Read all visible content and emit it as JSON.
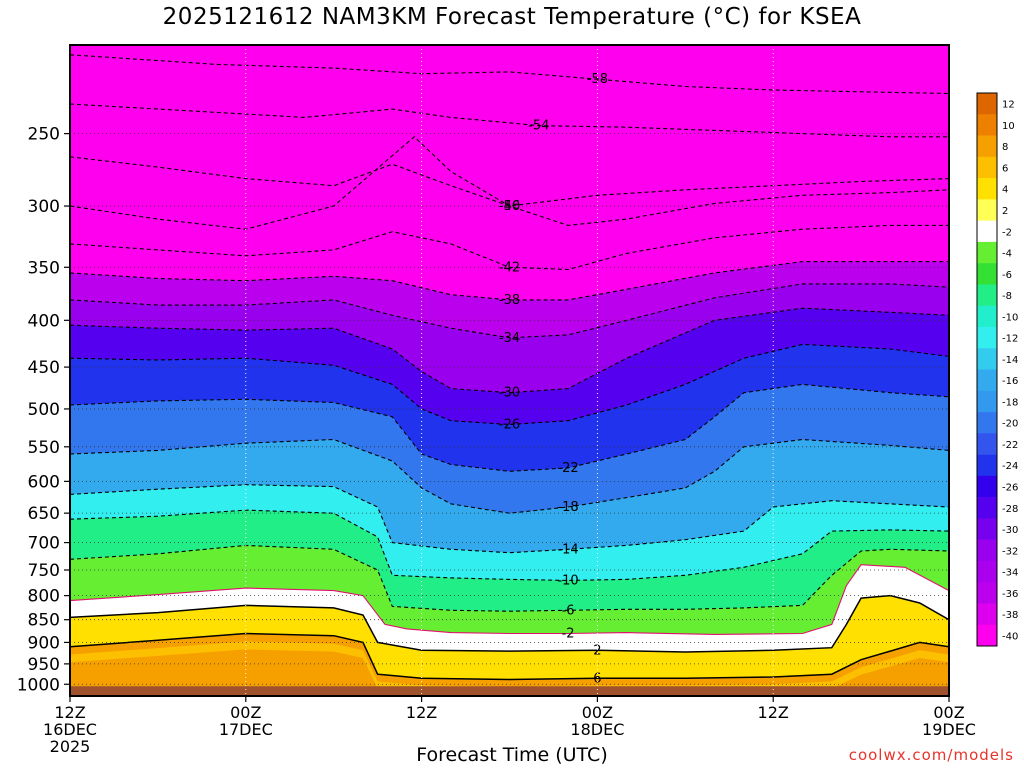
{
  "title": "2025121612 NAM3KM Forecast Temperature (°C) for KSEA",
  "xlabel": "Forecast Time (UTC)",
  "credit": "coolwx.com/models",
  "chart_data": {
    "type": "heatmap",
    "title": "2025121612 NAM3KM Forecast Temperature (°C) for KSEA",
    "xlabel": "Forecast Time (UTC)",
    "ylabel": "",
    "x_ticks": [
      {
        "hour": 0,
        "lines": [
          "12Z",
          "16DEC",
          "2025"
        ]
      },
      {
        "hour": 12,
        "lines": [
          "00Z",
          "17DEC"
        ]
      },
      {
        "hour": 24,
        "lines": [
          "12Z"
        ]
      },
      {
        "hour": 36,
        "lines": [
          "00Z",
          "18DEC"
        ]
      },
      {
        "hour": 48,
        "lines": [
          "12Z"
        ]
      },
      {
        "hour": 60,
        "lines": [
          "00Z",
          "19DEC"
        ]
      }
    ],
    "xlim": [
      0,
      60
    ],
    "y_ticks": [
      250,
      300,
      350,
      400,
      450,
      500,
      550,
      600,
      650,
      700,
      750,
      800,
      850,
      900,
      950,
      1000
    ],
    "ylim": [
      200,
      1030
    ],
    "y_scale": "log",
    "y_reversed": true,
    "grid": true,
    "colorbar": {
      "labels": [
        "12",
        "10",
        "8",
        "6",
        "4",
        "2",
        "-2",
        "-4",
        "-6",
        "-8",
        "-10",
        "-12",
        "-14",
        "-16",
        "-18",
        "-20",
        "-22",
        "-24",
        "-26",
        "-28",
        "-30",
        "-32",
        "-34",
        "-36",
        "-38",
        "-40"
      ],
      "colors": [
        "#dd6600",
        "#ee8000",
        "#f6a000",
        "#fdc000",
        "#ffe000",
        "#ffff55",
        "#ffffff",
        "#66ee33",
        "#33e033",
        "#22ee88",
        "#22eecc",
        "#33eeee",
        "#33ccee",
        "#33aaee",
        "#3399ee",
        "#3377ee",
        "#3355ee",
        "#2233ee",
        "#3300ee",
        "#5500ee",
        "#7700ee",
        "#9900ee",
        "#aa00ee",
        "#bb00ee",
        "#dd00ee",
        "#ff00ee"
      ]
    },
    "contours": [
      {
        "value": -58,
        "label": "-58",
        "points": [
          [
            0,
            205
          ],
          [
            10,
            210
          ],
          [
            18,
            212
          ],
          [
            24,
            215
          ],
          [
            30,
            214
          ],
          [
            36,
            218
          ],
          [
            42,
            222
          ],
          [
            48,
            224
          ],
          [
            54,
            225
          ],
          [
            60,
            226
          ]
        ]
      },
      {
        "value": -54,
        "label": "-54",
        "points": [
          [
            0,
            232
          ],
          [
            8,
            236
          ],
          [
            16,
            240
          ],
          [
            22,
            235
          ],
          [
            26,
            240
          ],
          [
            32,
            245
          ],
          [
            38,
            246
          ],
          [
            44,
            248
          ],
          [
            50,
            250
          ],
          [
            56,
            252
          ],
          [
            60,
            252
          ]
        ]
      },
      {
        "value": -50,
        "label": "-50",
        "points": [
          [
            0,
            265
          ],
          [
            6,
            272
          ],
          [
            12,
            280
          ],
          [
            18,
            285
          ],
          [
            22,
            270
          ],
          [
            26,
            285
          ],
          [
            30,
            300
          ],
          [
            36,
            292
          ],
          [
            42,
            288
          ],
          [
            48,
            285
          ],
          [
            54,
            282
          ],
          [
            60,
            280
          ]
        ]
      },
      {
        "value": -46,
        "label": "-46",
        "points": [
          [
            0,
            300
          ],
          [
            6,
            310
          ],
          [
            12,
            318
          ],
          [
            18,
            300
          ],
          [
            23.5,
            252
          ],
          [
            26,
            275
          ],
          [
            30,
            300
          ],
          [
            34,
            315
          ],
          [
            38,
            310
          ],
          [
            44,
            298
          ],
          [
            50,
            292
          ],
          [
            56,
            290
          ],
          [
            60,
            288
          ]
        ]
      },
      {
        "value": -42,
        "label": "-42",
        "points": [
          [
            0,
            330
          ],
          [
            6,
            335
          ],
          [
            12,
            340
          ],
          [
            18,
            335
          ],
          [
            22,
            320
          ],
          [
            26,
            330
          ],
          [
            30,
            350
          ],
          [
            34,
            352
          ],
          [
            38,
            338
          ],
          [
            44,
            325
          ],
          [
            50,
            318
          ],
          [
            56,
            315
          ],
          [
            60,
            315
          ]
        ]
      },
      {
        "value": -38,
        "label": "-38",
        "points": [
          [
            0,
            355
          ],
          [
            6,
            360
          ],
          [
            12,
            362
          ],
          [
            18,
            358
          ],
          [
            22,
            362
          ],
          [
            26,
            375
          ],
          [
            30,
            380
          ],
          [
            34,
            380
          ],
          [
            38,
            370
          ],
          [
            44,
            355
          ],
          [
            50,
            345
          ],
          [
            56,
            345
          ],
          [
            60,
            345
          ]
        ]
      },
      {
        "value": -34,
        "label": "-34",
        "points": [
          [
            0,
            380
          ],
          [
            6,
            385
          ],
          [
            12,
            385
          ],
          [
            18,
            380
          ],
          [
            22,
            395
          ],
          [
            26,
            408
          ],
          [
            30,
            418
          ],
          [
            34,
            415
          ],
          [
            38,
            400
          ],
          [
            44,
            378
          ],
          [
            50,
            365
          ],
          [
            56,
            365
          ],
          [
            60,
            368
          ]
        ]
      },
      {
        "value": -30,
        "label": "-30",
        "points": [
          [
            0,
            405
          ],
          [
            6,
            408
          ],
          [
            12,
            410
          ],
          [
            18,
            408
          ],
          [
            22,
            430
          ],
          [
            24,
            455
          ],
          [
            26,
            475
          ],
          [
            30,
            480
          ],
          [
            34,
            475
          ],
          [
            38,
            440
          ],
          [
            44,
            400
          ],
          [
            50,
            388
          ],
          [
            56,
            392
          ],
          [
            60,
            395
          ]
        ]
      },
      {
        "value": -26,
        "label": "-26",
        "points": [
          [
            0,
            440
          ],
          [
            6,
            442
          ],
          [
            12,
            440
          ],
          [
            18,
            448
          ],
          [
            22,
            470
          ],
          [
            24,
            500
          ],
          [
            26,
            515
          ],
          [
            30,
            520
          ],
          [
            34,
            515
          ],
          [
            38,
            495
          ],
          [
            42,
            470
          ],
          [
            46,
            440
          ],
          [
            50,
            425
          ],
          [
            56,
            430
          ],
          [
            60,
            438
          ]
        ]
      },
      {
        "value": -22,
        "label": "-22",
        "points": [
          [
            0,
            495
          ],
          [
            6,
            490
          ],
          [
            12,
            488
          ],
          [
            18,
            492
          ],
          [
            22,
            510
          ],
          [
            24,
            560
          ],
          [
            26,
            575
          ],
          [
            30,
            585
          ],
          [
            34,
            580
          ],
          [
            38,
            560
          ],
          [
            42,
            540
          ],
          [
            44,
            510
          ],
          [
            46,
            480
          ],
          [
            50,
            470
          ],
          [
            56,
            480
          ],
          [
            60,
            485
          ]
        ]
      },
      {
        "value": -18,
        "label": "-18",
        "points": [
          [
            0,
            560
          ],
          [
            6,
            555
          ],
          [
            12,
            545
          ],
          [
            18,
            540
          ],
          [
            22,
            570
          ],
          [
            24,
            610
          ],
          [
            26,
            635
          ],
          [
            30,
            650
          ],
          [
            34,
            640
          ],
          [
            38,
            625
          ],
          [
            42,
            610
          ],
          [
            44,
            585
          ],
          [
            46,
            550
          ],
          [
            50,
            540
          ],
          [
            56,
            548
          ],
          [
            60,
            555
          ]
        ]
      },
      {
        "value": -14,
        "label": "-14",
        "points": [
          [
            0,
            620
          ],
          [
            6,
            612
          ],
          [
            12,
            605
          ],
          [
            18,
            608
          ],
          [
            21,
            640
          ],
          [
            22,
            700
          ],
          [
            26,
            712
          ],
          [
            30,
            718
          ],
          [
            34,
            712
          ],
          [
            38,
            705
          ],
          [
            42,
            695
          ],
          [
            46,
            680
          ],
          [
            48,
            640
          ],
          [
            52,
            630
          ],
          [
            56,
            635
          ],
          [
            60,
            640
          ]
        ]
      },
      {
        "value": -10,
        "label": "-10",
        "points": [
          [
            0,
            660
          ],
          [
            6,
            655
          ],
          [
            12,
            645
          ],
          [
            18,
            650
          ],
          [
            21,
            690
          ],
          [
            22,
            760
          ],
          [
            26,
            765
          ],
          [
            30,
            768
          ],
          [
            34,
            770
          ],
          [
            38,
            768
          ],
          [
            42,
            760
          ],
          [
            46,
            745
          ],
          [
            50,
            720
          ],
          [
            52,
            680
          ],
          [
            56,
            678
          ],
          [
            60,
            680
          ]
        ]
      },
      {
        "value": -6,
        "label": "-6",
        "points": [
          [
            0,
            730
          ],
          [
            6,
            720
          ],
          [
            12,
            705
          ],
          [
            18,
            712
          ],
          [
            21,
            750
          ],
          [
            22,
            822
          ],
          [
            26,
            830
          ],
          [
            30,
            832
          ],
          [
            34,
            830
          ],
          [
            38,
            828
          ],
          [
            42,
            828
          ],
          [
            46,
            825
          ],
          [
            50,
            820
          ],
          [
            52,
            760
          ],
          [
            54,
            715
          ],
          [
            56,
            712
          ],
          [
            60,
            715
          ]
        ]
      },
      {
        "value": -2,
        "label": "-2",
        "points": [
          [
            0,
            810
          ],
          [
            6,
            798
          ],
          [
            12,
            785
          ],
          [
            18,
            790
          ],
          [
            20,
            800
          ],
          [
            21.5,
            860
          ],
          [
            23,
            870
          ],
          [
            26,
            878
          ],
          [
            30,
            880
          ],
          [
            34,
            880
          ],
          [
            38,
            878
          ],
          [
            44,
            882
          ],
          [
            50,
            880
          ],
          [
            52,
            860
          ],
          [
            53,
            780
          ],
          [
            54,
            740
          ],
          [
            57,
            745
          ],
          [
            60,
            790
          ]
        ]
      },
      {
        "value": 2,
        "label": "2",
        "points": [
          [
            0,
            845
          ],
          [
            6,
            835
          ],
          [
            12,
            820
          ],
          [
            18,
            825
          ],
          [
            20,
            840
          ],
          [
            21,
            900
          ],
          [
            24,
            918
          ],
          [
            30,
            920
          ],
          [
            36,
            918
          ],
          [
            42,
            922
          ],
          [
            48,
            918
          ],
          [
            52,
            912
          ],
          [
            53,
            860
          ],
          [
            54,
            805
          ],
          [
            56,
            800
          ],
          [
            58,
            815
          ],
          [
            60,
            850
          ]
        ]
      },
      {
        "value": 6,
        "label": "6",
        "points": [
          [
            0,
            910
          ],
          [
            6,
            895
          ],
          [
            12,
            880
          ],
          [
            18,
            885
          ],
          [
            20,
            900
          ],
          [
            21,
            975
          ],
          [
            24,
            985
          ],
          [
            30,
            988
          ],
          [
            36,
            985
          ],
          [
            42,
            985
          ],
          [
            48,
            982
          ],
          [
            52,
            975
          ],
          [
            54,
            940
          ],
          [
            56,
            920
          ],
          [
            58,
            900
          ],
          [
            60,
            910
          ]
        ]
      }
    ]
  }
}
